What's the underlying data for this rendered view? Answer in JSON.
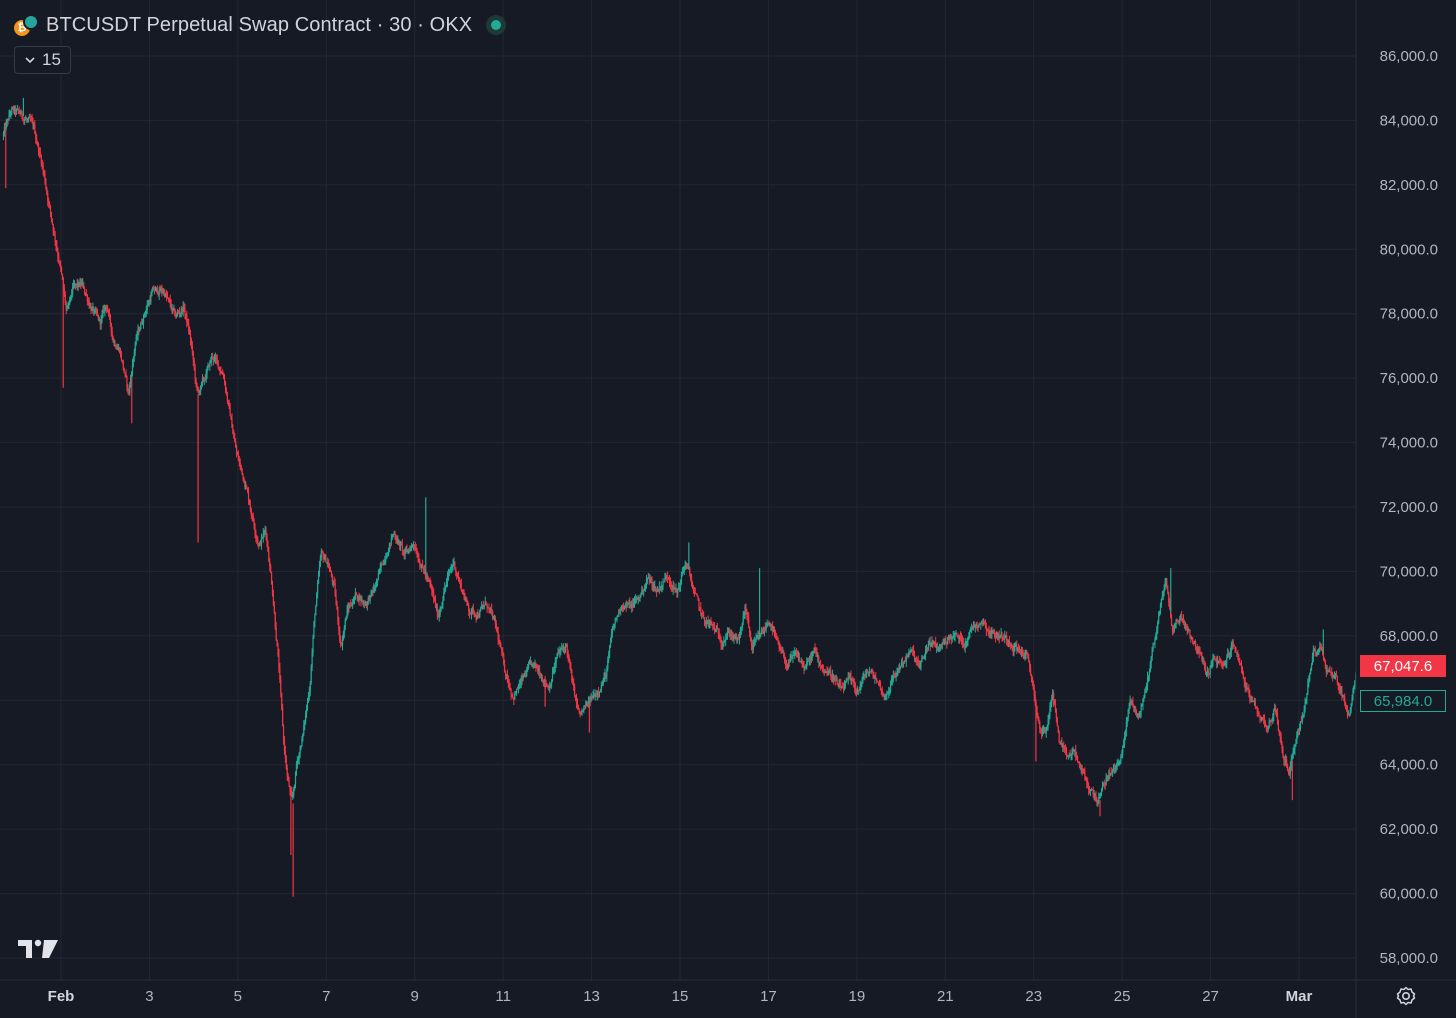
{
  "header": {
    "title": "BTCUSDT Perpetual Swap Contract · 30 · OKX",
    "collapse_count": "15"
  },
  "icons": {
    "symbol": "bitcoin-usdt-icon",
    "live": "market-open-dot-icon",
    "collapse": "chevron-down-icon",
    "logo": "tradingview-logo-icon",
    "settings": "settings-gear-icon"
  },
  "price_labels": {
    "last": "67,047.6",
    "other": "65,984.0"
  },
  "colors": {
    "background": "#161a25",
    "grid": "#232733",
    "up": "#22ab94",
    "down": "#f23645",
    "axis_text": "#b2b5be"
  },
  "chart_data": {
    "type": "candlestick",
    "title": "BTCUSDT Perpetual Swap Contract · 30 · OKX",
    "interval": "30",
    "exchange": "OKX",
    "ylim": [
      57000,
      87000
    ],
    "y_ticks": [
      "86,000.0",
      "84,000.0",
      "82,000.0",
      "80,000.0",
      "78,000.0",
      "76,000.0",
      "74,000.0",
      "72,000.0",
      "70,000.0",
      "68,000.0",
      "66,000.0",
      "64,000.0",
      "62,000.0",
      "60,000.0",
      "58,000.0"
    ],
    "x_ticks": [
      "Feb",
      "3",
      "5",
      "7",
      "9",
      "11",
      "13",
      "15",
      "17",
      "19",
      "21",
      "23",
      "25",
      "27",
      "Mar"
    ],
    "x_tick_days": [
      1,
      3,
      5,
      7,
      9,
      11,
      13,
      15,
      17,
      19,
      21,
      23,
      25,
      27,
      29
    ],
    "x_range_days": [
      -0.3,
      30.4
    ],
    "last_price": 67047.6,
    "other_price": 65984.0,
    "grid": true,
    "close_path": [
      [
        -0.3,
        83500
      ],
      [
        -0.1,
        84300
      ],
      [
        0.1,
        84200
      ],
      [
        0.4,
        83800
      ],
      [
        0.6,
        82600
      ],
      [
        0.8,
        81000
      ],
      [
        1.0,
        79500
      ],
      [
        1.15,
        78000
      ],
      [
        1.3,
        78800
      ],
      [
        1.5,
        78900
      ],
      [
        1.7,
        78200
      ],
      [
        1.9,
        77700
      ],
      [
        2.05,
        78300
      ],
      [
        2.2,
        77200
      ],
      [
        2.35,
        76900
      ],
      [
        2.55,
        75500
      ],
      [
        2.7,
        77100
      ],
      [
        2.9,
        78000
      ],
      [
        3.1,
        78700
      ],
      [
        3.35,
        78700
      ],
      [
        3.6,
        77900
      ],
      [
        3.8,
        78200
      ],
      [
        3.95,
        77200
      ],
      [
        4.1,
        75500
      ],
      [
        4.25,
        75900
      ],
      [
        4.45,
        76700
      ],
      [
        4.7,
        76100
      ],
      [
        4.85,
        74800
      ],
      [
        5.0,
        73600
      ],
      [
        5.2,
        72700
      ],
      [
        5.35,
        71700
      ],
      [
        5.5,
        70800
      ],
      [
        5.65,
        71300
      ],
      [
        5.8,
        69500
      ],
      [
        5.95,
        67000
      ],
      [
        6.05,
        64800
      ],
      [
        6.15,
        63500
      ],
      [
        6.25,
        62800
      ],
      [
        6.35,
        64000
      ],
      [
        6.5,
        65000
      ],
      [
        6.65,
        66500
      ],
      [
        6.75,
        68500
      ],
      [
        6.9,
        70500
      ],
      [
        7.05,
        70300
      ],
      [
        7.2,
        69500
      ],
      [
        7.35,
        67700
      ],
      [
        7.5,
        68800
      ],
      [
        7.7,
        69300
      ],
      [
        7.9,
        69000
      ],
      [
        8.1,
        69400
      ],
      [
        8.35,
        70500
      ],
      [
        8.55,
        71200
      ],
      [
        8.8,
        70500
      ],
      [
        9.0,
        70900
      ],
      [
        9.2,
        70100
      ],
      [
        9.4,
        69400
      ],
      [
        9.55,
        68600
      ],
      [
        9.7,
        69500
      ],
      [
        9.9,
        70300
      ],
      [
        10.05,
        69600
      ],
      [
        10.25,
        68800
      ],
      [
        10.45,
        68700
      ],
      [
        10.65,
        69000
      ],
      [
        10.85,
        68300
      ],
      [
        11.05,
        67000
      ],
      [
        11.25,
        66100
      ],
      [
        11.45,
        66600
      ],
      [
        11.65,
        67100
      ],
      [
        11.85,
        66900
      ],
      [
        12.05,
        66400
      ],
      [
        12.25,
        67400
      ],
      [
        12.45,
        67700
      ],
      [
        12.6,
        66400
      ],
      [
        12.75,
        65500
      ],
      [
        12.95,
        65900
      ],
      [
        13.15,
        66300
      ],
      [
        13.35,
        66800
      ],
      [
        13.5,
        68200
      ],
      [
        13.7,
        69000
      ],
      [
        13.9,
        68900
      ],
      [
        14.1,
        69200
      ],
      [
        14.3,
        69800
      ],
      [
        14.5,
        69400
      ],
      [
        14.75,
        69900
      ],
      [
        14.95,
        69300
      ],
      [
        15.15,
        70300
      ],
      [
        15.35,
        69300
      ],
      [
        15.55,
        68500
      ],
      [
        15.75,
        68300
      ],
      [
        15.95,
        67900
      ],
      [
        16.15,
        68100
      ],
      [
        16.35,
        67800
      ],
      [
        16.5,
        68900
      ],
      [
        16.65,
        67600
      ],
      [
        16.85,
        68000
      ],
      [
        17.05,
        68500
      ],
      [
        17.25,
        67600
      ],
      [
        17.45,
        67100
      ],
      [
        17.65,
        67400
      ],
      [
        17.85,
        67000
      ],
      [
        18.05,
        67500
      ],
      [
        18.25,
        67000
      ],
      [
        18.45,
        66800
      ],
      [
        18.65,
        66300
      ],
      [
        18.85,
        66600
      ],
      [
        19.05,
        66300
      ],
      [
        19.25,
        66900
      ],
      [
        19.45,
        66700
      ],
      [
        19.65,
        66100
      ],
      [
        19.85,
        66700
      ],
      [
        20.05,
        67200
      ],
      [
        20.25,
        67500
      ],
      [
        20.45,
        67000
      ],
      [
        20.65,
        67800
      ],
      [
        20.85,
        67600
      ],
      [
        21.05,
        67900
      ],
      [
        21.25,
        68000
      ],
      [
        21.45,
        67800
      ],
      [
        21.65,
        68300
      ],
      [
        21.85,
        68500
      ],
      [
        22.05,
        68100
      ],
      [
        22.25,
        68000
      ],
      [
        22.45,
        67900
      ],
      [
        22.65,
        67600
      ],
      [
        22.85,
        67400
      ],
      [
        23.0,
        66500
      ],
      [
        23.15,
        65100
      ],
      [
        23.3,
        65000
      ],
      [
        23.45,
        66300
      ],
      [
        23.6,
        64700
      ],
      [
        23.75,
        64200
      ],
      [
        23.95,
        64400
      ],
      [
        24.1,
        63800
      ],
      [
        24.3,
        63200
      ],
      [
        24.5,
        62900
      ],
      [
        24.7,
        63700
      ],
      [
        24.9,
        63900
      ],
      [
        25.05,
        64600
      ],
      [
        25.2,
        66000
      ],
      [
        25.4,
        65500
      ],
      [
        25.55,
        66300
      ],
      [
        25.7,
        67500
      ],
      [
        25.85,
        68600
      ],
      [
        26.0,
        69800
      ],
      [
        26.15,
        68200
      ],
      [
        26.35,
        68600
      ],
      [
        26.55,
        68100
      ],
      [
        26.75,
        67500
      ],
      [
        26.95,
        66800
      ],
      [
        27.1,
        67300
      ],
      [
        27.3,
        67000
      ],
      [
        27.5,
        67700
      ],
      [
        27.65,
        67400
      ],
      [
        27.8,
        66500
      ],
      [
        27.95,
        65900
      ],
      [
        28.1,
        65600
      ],
      [
        28.3,
        65200
      ],
      [
        28.5,
        65700
      ],
      [
        28.65,
        64300
      ],
      [
        28.8,
        63800
      ],
      [
        28.95,
        64800
      ],
      [
        29.15,
        65800
      ],
      [
        29.35,
        67500
      ],
      [
        29.5,
        67700
      ],
      [
        29.65,
        67000
      ],
      [
        29.85,
        66700
      ],
      [
        30.0,
        66200
      ],
      [
        30.15,
        65500
      ],
      [
        30.3,
        66800
      ],
      [
        30.4,
        67047.6
      ]
    ],
    "spikes": [
      {
        "t": 1.05,
        "low": 75700
      },
      {
        "t": 2.6,
        "low": 74600
      },
      {
        "t": 4.1,
        "low": 70900
      },
      {
        "t": 6.25,
        "low": 59900
      },
      {
        "t": 6.2,
        "low": 61200
      },
      {
        "t": 9.25,
        "high": 72300
      },
      {
        "t": 15.2,
        "high": 70900
      },
      {
        "t": 16.8,
        "high": 70100
      },
      {
        "t": 23.05,
        "low": 64100
      },
      {
        "t": 24.5,
        "low": 62400
      },
      {
        "t": 26.1,
        "high": 70100
      },
      {
        "t": 28.85,
        "low": 62900
      },
      {
        "t": 29.55,
        "high": 68200
      },
      {
        "t": 12.95,
        "low": 65000
      },
      {
        "t": 11.95,
        "low": 65800
      },
      {
        "t": -0.25,
        "low": 81900
      },
      {
        "t": 0.15,
        "high": 84700
      }
    ]
  }
}
